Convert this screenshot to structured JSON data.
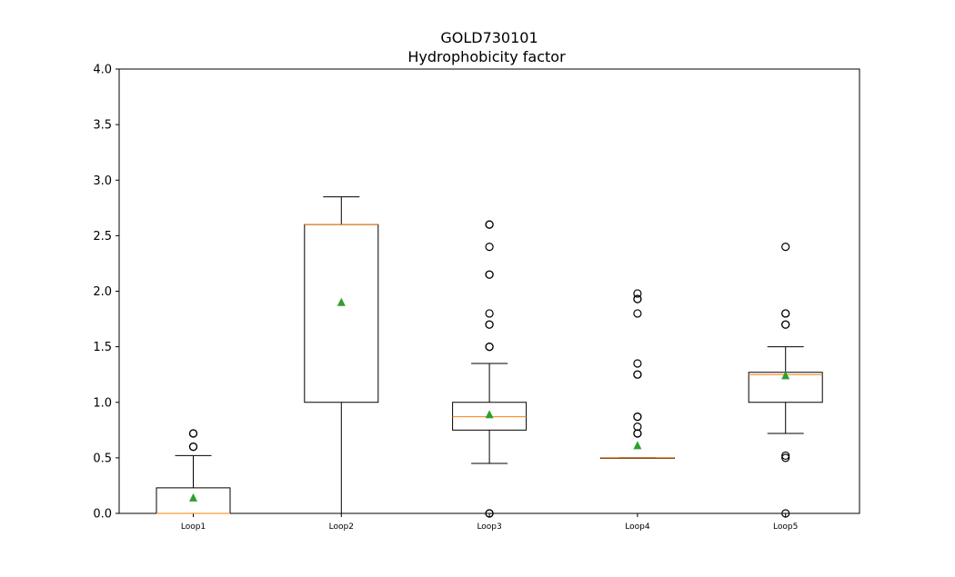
{
  "chart_data": {
    "type": "box",
    "title": "GOLD730101",
    "subtitle": "Hydrophobicity factor",
    "xlabel": "",
    "ylabel": "",
    "ylim": [
      0,
      4.0
    ],
    "yticks": [
      "0.0",
      "0.5",
      "1.0",
      "1.5",
      "2.0",
      "2.5",
      "3.0",
      "3.5",
      "4.0"
    ],
    "grid": false,
    "categories": [
      "Loop1",
      "Loop2",
      "Loop3",
      "Loop4",
      "Loop5"
    ],
    "boxes": [
      {
        "category": "Loop1",
        "whisker_low": 0.0,
        "q1": 0.0,
        "median": 0.0,
        "q3": 0.23,
        "whisker_high": 0.52,
        "mean": 0.14,
        "outliers": [
          0.6,
          0.6,
          0.72,
          0.72
        ]
      },
      {
        "category": "Loop2",
        "whisker_low": 0.0,
        "q1": 1.0,
        "median": 2.6,
        "q3": 2.6,
        "whisker_high": 2.85,
        "mean": 1.9,
        "outliers": []
      },
      {
        "category": "Loop3",
        "whisker_low": 0.45,
        "q1": 0.75,
        "median": 0.87,
        "q3": 1.0,
        "whisker_high": 1.35,
        "mean": 0.89,
        "outliers": [
          0.0,
          0.0,
          1.5,
          1.5,
          1.7,
          1.7,
          1.8,
          2.15,
          2.15,
          2.4,
          2.6,
          2.6
        ]
      },
      {
        "category": "Loop4",
        "whisker_low": 0.5,
        "q1": 0.5,
        "median": 0.5,
        "q3": 0.5,
        "whisker_high": 0.5,
        "mean": 0.61,
        "outliers": [
          0.72,
          0.72,
          0.78,
          0.87,
          0.87,
          1.25,
          1.25,
          1.35,
          1.8,
          1.93,
          1.93,
          1.98
        ]
      },
      {
        "category": "Loop5",
        "whisker_low": 0.72,
        "q1": 1.0,
        "median": 1.25,
        "q3": 1.27,
        "whisker_high": 1.5,
        "mean": 1.24,
        "outliers": [
          0.0,
          0.5,
          0.52,
          1.7,
          1.7,
          1.8,
          1.8,
          2.4
        ]
      }
    ],
    "colors": {
      "box": "#000000",
      "median": "#ff7f0e",
      "mean": "#2ca02c",
      "outlier": "#000000"
    }
  }
}
